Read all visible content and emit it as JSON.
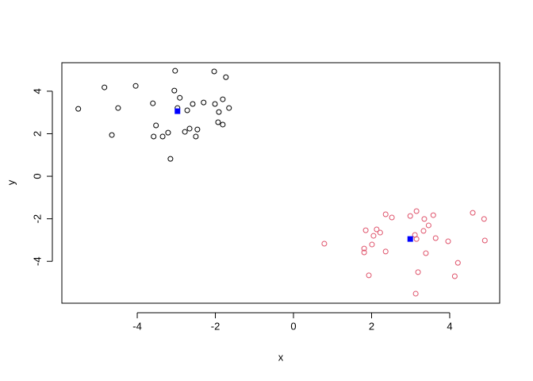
{
  "chart_data": {
    "type": "scatter",
    "xlabel": "x",
    "ylabel": "y",
    "xlim": [
      -5.93,
      5.28
    ],
    "ylim": [
      -5.97,
      5.34
    ],
    "xticks": [
      -4,
      -2,
      0,
      2,
      4
    ],
    "yticks": [
      -4,
      -2,
      0,
      2,
      4
    ],
    "series": [
      {
        "color": "#000000",
        "marker": "circle",
        "x": [
          -5.51,
          -4.84,
          -4.04,
          -4.49,
          -4.65,
          -3.6,
          -3.52,
          -3.58,
          -3.35,
          -3.21,
          -3.15,
          -3.03,
          -3.05,
          -2.97,
          -2.91,
          -2.72,
          -2.78,
          -2.66,
          -2.58,
          -2.5,
          -2.46,
          -2.3,
          -2.03,
          -2.01,
          -1.91,
          -1.93,
          -1.81,
          -1.81,
          -1.73,
          -1.65
        ],
        "values": [
          3.17,
          4.18,
          4.25,
          3.21,
          1.94,
          3.43,
          2.39,
          1.87,
          1.87,
          2.05,
          0.82,
          4.96,
          4.03,
          3.21,
          3.69,
          3.1,
          2.09,
          2.24,
          3.4,
          1.87,
          2.2,
          3.47,
          4.93,
          3.4,
          3.02,
          2.54,
          2.43,
          3.62,
          4.66,
          3.21
        ]
      },
      {
        "color": "#df536b",
        "marker": "circle",
        "x": [
          0.79,
          1.85,
          1.81,
          1.81,
          1.93,
          2.01,
          2.05,
          2.13,
          2.22,
          2.36,
          2.36,
          2.52,
          2.99,
          3.11,
          3.15,
          3.15,
          3.19,
          3.13,
          3.33,
          3.35,
          3.46,
          3.39,
          3.58,
          3.64,
          3.96,
          4.13,
          4.21,
          4.59,
          4.88,
          4.9
        ],
        "values": [
          -3.17,
          -2.54,
          -3.4,
          -3.58,
          -4.66,
          -3.21,
          -2.8,
          -2.5,
          -2.65,
          -1.79,
          -3.54,
          -1.94,
          -1.87,
          -2.76,
          -1.64,
          -2.95,
          -4.51,
          -5.52,
          -2.57,
          -2.01,
          -2.31,
          -3.62,
          -1.83,
          -2.91,
          -3.06,
          -4.7,
          -4.07,
          -1.72,
          -2.01,
          -3.02
        ]
      },
      {
        "color": "#0000ff",
        "marker": "square",
        "x": [
          -2.97,
          2.99
        ],
        "values": [
          3.06,
          -2.95
        ]
      }
    ]
  }
}
